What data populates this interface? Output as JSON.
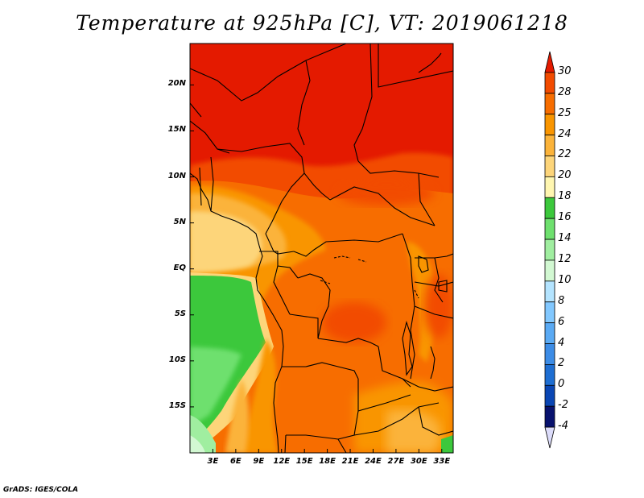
{
  "title": "Temperature at 925hPa [C], VT: 2019061218",
  "credit": "GrADS: IGES/COLA",
  "map": {
    "variable": "Temperature at 925hPa",
    "units": "C",
    "valid_time": "2019061218",
    "lon_range": [
      0,
      34.5
    ],
    "lat_range": [
      -20,
      24.5
    ],
    "lat_ticks": [
      {
        "value": 20,
        "label": "20N"
      },
      {
        "value": 15,
        "label": "15N"
      },
      {
        "value": 10,
        "label": "10N"
      },
      {
        "value": 5,
        "label": "5N"
      },
      {
        "value": 0,
        "label": "EQ"
      },
      {
        "value": -5,
        "label": "5S"
      },
      {
        "value": -10,
        "label": "10S"
      },
      {
        "value": -15,
        "label": "15S"
      }
    ],
    "lon_ticks": [
      {
        "value": 3,
        "label": "3E"
      },
      {
        "value": 6,
        "label": "6E"
      },
      {
        "value": 9,
        "label": "9E"
      },
      {
        "value": 12,
        "label": "12E"
      },
      {
        "value": 15,
        "label": "15E"
      },
      {
        "value": 18,
        "label": "18E"
      },
      {
        "value": 21,
        "label": "21E"
      },
      {
        "value": 24,
        "label": "24E"
      },
      {
        "value": 27,
        "label": "27E"
      },
      {
        "value": 30,
        "label": "30E"
      },
      {
        "value": 33,
        "label": "33E"
      }
    ]
  },
  "colorbar": {
    "labels": [
      "30",
      "28",
      "25",
      "24",
      "22",
      "20",
      "18",
      "16",
      "14",
      "12",
      "10",
      "8",
      "6",
      "4",
      "2",
      "0",
      "-2",
      "-4"
    ],
    "colors": [
      "#e41a00",
      "#f24b00",
      "#f76d00",
      "#f99500",
      "#fbb33a",
      "#fdd57a",
      "#fff6b0",
      "#3cc83c",
      "#6ee06e",
      "#a0eea0",
      "#d2f8d2",
      "#b4e4ff",
      "#82c8ff",
      "#5aaaf4",
      "#3c8ce6",
      "#1e6ed2",
      "#0a46b4",
      "#08126e",
      "#dcdcfa"
    ]
  }
}
